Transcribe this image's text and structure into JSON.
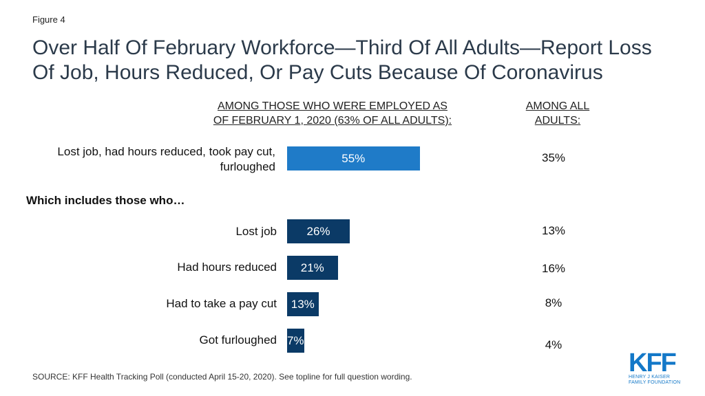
{
  "figure_label": "Figure 4",
  "title_line1": "Over Half Of February Workforce—Third Of All Adults—Report Loss",
  "title_line2": "Of Job, Hours Reduced, Or Pay Cuts Because Of Coronavirus",
  "chart_data": {
    "type": "bar",
    "orientation": "horizontal",
    "column_headers": {
      "employed_line1": "AMONG THOSE WHO WERE EMPLOYED AS",
      "employed_line2": "OF FEBRUARY 1, 2020 (63% OF ALL ADULTS):",
      "all_line1": "AMONG ALL",
      "all_line2": "ADULTS:"
    },
    "subheading": "Which includes those who…",
    "categories": [
      "Lost job, had hours reduced, took pay cut, furloughed",
      "Lost job",
      "Had hours reduced",
      "Had to take a pay cut",
      "Got furloughed"
    ],
    "series": [
      {
        "values": [
          55,
          26,
          21,
          13,
          7
        ],
        "labels": [
          "55%",
          "26%",
          "21%",
          "13%",
          "7%"
        ]
      }
    ],
    "all_adults": [
      "35%",
      "13%",
      "16%",
      "8%",
      "4%"
    ],
    "colors": {
      "total_bar": "#1f7bc8",
      "detail_bar": "#0b3a66"
    }
  },
  "source": "SOURCE: KFF Health Tracking Poll (conducted April 15-20, 2020). See topline for full question wording.",
  "logo": {
    "letters": "KFF",
    "line1": "HENRY J KAISER",
    "line2": "FAMILY FOUNDATION"
  }
}
